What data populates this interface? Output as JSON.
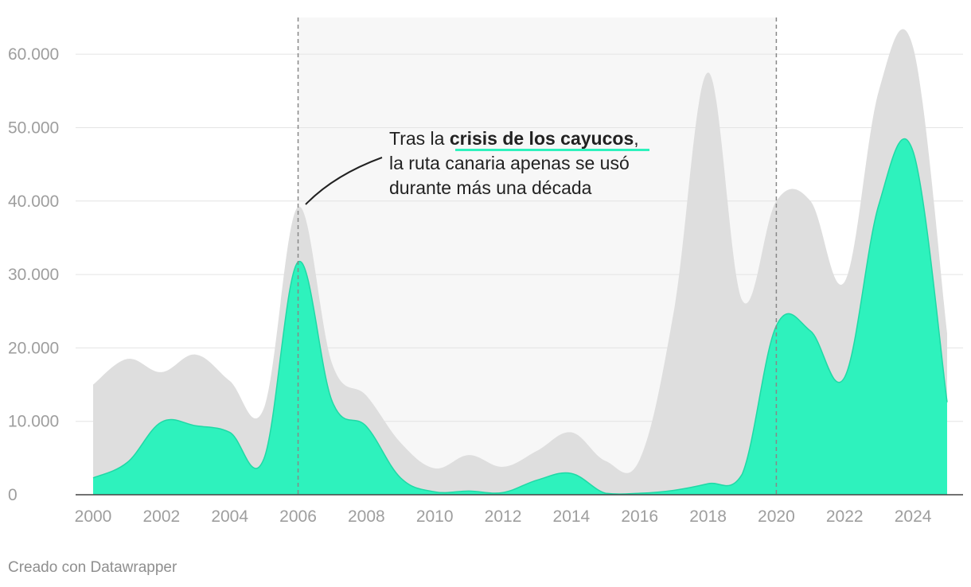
{
  "chart_data": {
    "type": "area",
    "x": [
      2000,
      2001,
      2002,
      2003,
      2004,
      2005,
      2006,
      2007,
      2008,
      2009,
      2010,
      2011,
      2012,
      2013,
      2014,
      2015,
      2016,
      2017,
      2018,
      2019,
      2020,
      2021,
      2022,
      2023,
      2024,
      2025
    ],
    "series": [
      {
        "color": "#dedede",
        "values": [
          15000,
          18500,
          16700,
          19100,
          15500,
          11800,
          39200,
          17800,
          13500,
          7100,
          3600,
          5400,
          3800,
          6000,
          8500,
          4600,
          4800,
          25000,
          57500,
          26500,
          40000,
          40000,
          29000,
          55000,
          61000,
          22000
        ]
      },
      {
        "color": "#2ef2bd",
        "values": [
          2300,
          4400,
          9900,
          9400,
          8500,
          4900,
          31700,
          12700,
          9300,
          2300,
          400,
          500,
          300,
          2000,
          2900,
          200,
          200,
          600,
          1500,
          2800,
          23000,
          22300,
          16000,
          39500,
          46800,
          12600
        ]
      }
    ],
    "xticks": [
      "2000",
      "2002",
      "2004",
      "2006",
      "2008",
      "2010",
      "2012",
      "2014",
      "2016",
      "2018",
      "2020",
      "2022",
      "2024"
    ],
    "yticks": [
      "0",
      "10.000",
      "20.000",
      "30.000",
      "40.000",
      "50.000",
      "60.000"
    ],
    "ylim": [
      0,
      65000
    ],
    "xlim": [
      2000,
      2025
    ],
    "grid": true,
    "highlight_range": [
      2006,
      2020
    ],
    "annotation": {
      "line1_pre": "Tras la ",
      "line1_bold": "crisis de los cayucos",
      "line1_post": ",",
      "line2": "la ruta canaria apenas se usó",
      "line3": "durante más una década"
    },
    "colors": {
      "accent": "#2ef2bd",
      "total": "#dedede",
      "band": "#f7f7f7"
    }
  },
  "footer": {
    "credit": "Creado con Datawrapper"
  }
}
